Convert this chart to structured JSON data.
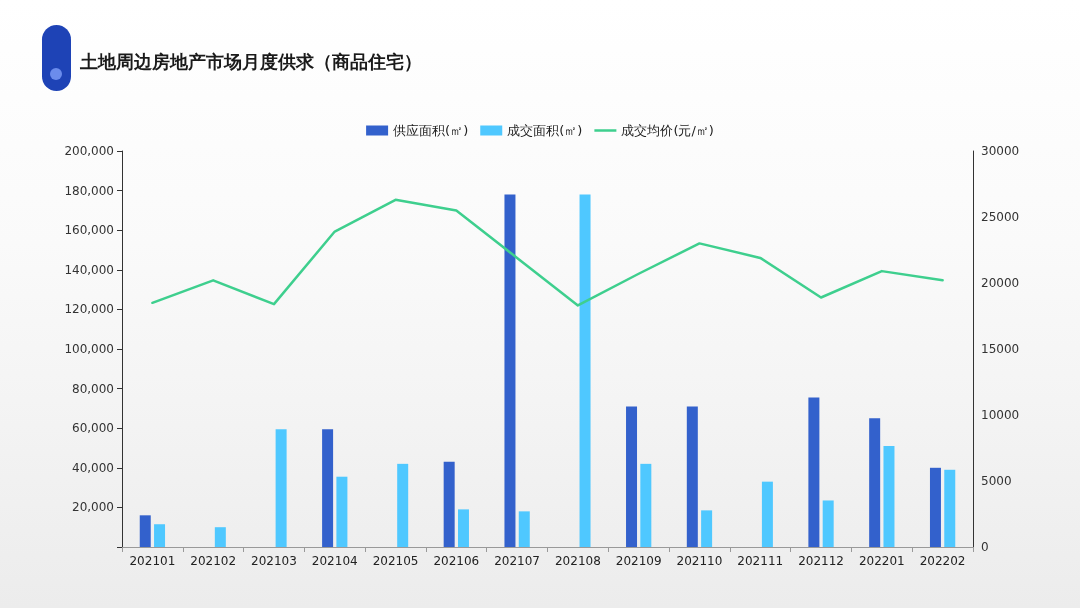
{
  "chart_data": {
    "type": "bar",
    "title": "土地周边房地产市场月度供求（商品住宅）",
    "categories": [
      "202101",
      "202102",
      "202103",
      "202104",
      "202105",
      "202106",
      "202107",
      "202108",
      "202109",
      "202110",
      "202111",
      "202112",
      "202201",
      "202202"
    ],
    "series": [
      {
        "name": "供应面积(㎡)",
        "color": "#3361cc",
        "values": [
          16000,
          null,
          null,
          59500,
          null,
          43000,
          178000,
          null,
          71000,
          71000,
          null,
          75500,
          65000,
          40000
        ]
      },
      {
        "name": "成交面积(㎡)",
        "color": "#4fc8ff",
        "values": [
          11500,
          10000,
          59500,
          35500,
          42000,
          19000,
          18000,
          178000,
          42000,
          18500,
          33000,
          23500,
          51000,
          39000
        ]
      },
      {
        "name": "成交均价(元/㎡)",
        "type": "line",
        "axis": "y2",
        "color": "#3ecf8e",
        "values": [
          18500,
          20200,
          18400,
          23900,
          26300,
          25500,
          21900,
          18300,
          20700,
          23000,
          21900,
          18900,
          20900,
          20200
        ]
      }
    ],
    "ylim": [
      0,
      200000
    ],
    "yticks": [
      {
        "value": 0,
        "label": null
      },
      {
        "value": 20000,
        "label": "20,000"
      },
      {
        "value": 40000,
        "label": "40,000"
      },
      {
        "value": 60000,
        "label": "60,000"
      },
      {
        "value": 80000,
        "label": "80,000"
      },
      {
        "value": 100000,
        "label": "100,000"
      },
      {
        "value": 120000,
        "label": "120,000"
      },
      {
        "value": 140000,
        "label": "140,000"
      },
      {
        "value": 160000,
        "label": "160,000"
      },
      {
        "value": 180000,
        "label": "180,000"
      },
      {
        "value": 200000,
        "label": "200,000"
      }
    ],
    "y2lim": [
      0,
      30000
    ],
    "y2ticks": [
      0,
      5000,
      10000,
      15000,
      20000,
      25000,
      30000
    ],
    "legend": "top",
    "grid": false
  }
}
